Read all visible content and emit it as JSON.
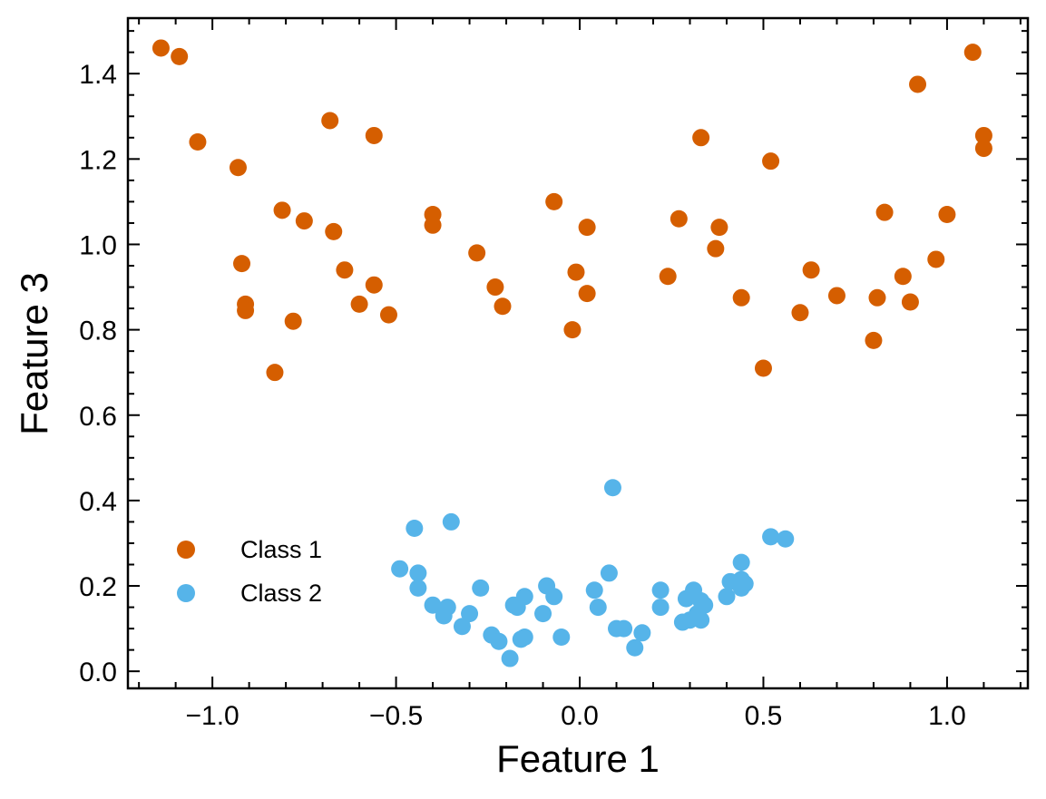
{
  "chart_data": {
    "type": "scatter",
    "title": "",
    "xlabel": "Feature 1",
    "ylabel": "Feature 3",
    "xlim": [
      -1.23,
      1.22
    ],
    "ylim": [
      -0.04,
      1.53
    ],
    "xticks": [
      -1.0,
      -0.5,
      0.0,
      0.5,
      1.0
    ],
    "xtick_labels": [
      "−1.0",
      "−0.5",
      "0.0",
      "0.5",
      "1.0"
    ],
    "yticks": [
      0.0,
      0.2,
      0.4,
      0.6,
      0.8,
      1.0,
      1.2,
      1.4
    ],
    "ytick_labels": [
      "0.0",
      "0.2",
      "0.4",
      "0.6",
      "0.8",
      "1.0",
      "1.2",
      "1.4"
    ],
    "grid": false,
    "legend_position": "lower-left",
    "series": [
      {
        "name": "Class 1",
        "color": "#d55e00",
        "points": [
          [
            -1.14,
            1.46
          ],
          [
            -1.09,
            1.44
          ],
          [
            -1.04,
            1.24
          ],
          [
            -0.93,
            1.18
          ],
          [
            -0.92,
            0.955
          ],
          [
            -0.91,
            0.86
          ],
          [
            -0.91,
            0.845
          ],
          [
            -0.83,
            0.7
          ],
          [
            -0.81,
            1.08
          ],
          [
            -0.78,
            0.82
          ],
          [
            -0.75,
            1.055
          ],
          [
            -0.68,
            1.29
          ],
          [
            -0.67,
            1.03
          ],
          [
            -0.64,
            0.94
          ],
          [
            -0.6,
            0.86
          ],
          [
            -0.56,
            1.255
          ],
          [
            -0.56,
            0.905
          ],
          [
            -0.52,
            0.835
          ],
          [
            -0.4,
            1.07
          ],
          [
            -0.4,
            1.045
          ],
          [
            -0.28,
            0.98
          ],
          [
            -0.23,
            0.9
          ],
          [
            -0.21,
            0.855
          ],
          [
            -0.07,
            1.1
          ],
          [
            -0.02,
            0.8
          ],
          [
            -0.01,
            0.935
          ],
          [
            0.02,
            1.04
          ],
          [
            0.02,
            0.885
          ],
          [
            0.24,
            0.925
          ],
          [
            0.27,
            1.06
          ],
          [
            0.33,
            1.25
          ],
          [
            0.37,
            0.99
          ],
          [
            0.38,
            1.04
          ],
          [
            0.44,
            0.875
          ],
          [
            0.5,
            0.71
          ],
          [
            0.52,
            1.195
          ],
          [
            0.6,
            0.84
          ],
          [
            0.63,
            0.94
          ],
          [
            0.7,
            0.88
          ],
          [
            0.8,
            0.775
          ],
          [
            0.81,
            0.875
          ],
          [
            0.83,
            1.075
          ],
          [
            0.88,
            0.925
          ],
          [
            0.9,
            0.865
          ],
          [
            0.92,
            1.375
          ],
          [
            0.97,
            0.965
          ],
          [
            1.0,
            1.07
          ],
          [
            1.07,
            1.45
          ],
          [
            1.1,
            1.255
          ],
          [
            1.1,
            1.225
          ]
        ]
      },
      {
        "name": "Class 2",
        "color": "#56b4e9",
        "points": [
          [
            -0.49,
            0.24
          ],
          [
            -0.45,
            0.335
          ],
          [
            -0.44,
            0.195
          ],
          [
            -0.44,
            0.23
          ],
          [
            -0.4,
            0.155
          ],
          [
            -0.37,
            0.13
          ],
          [
            -0.36,
            0.15
          ],
          [
            -0.35,
            0.35
          ],
          [
            -0.32,
            0.105
          ],
          [
            -0.3,
            0.135
          ],
          [
            -0.27,
            0.195
          ],
          [
            -0.24,
            0.085
          ],
          [
            -0.22,
            0.07
          ],
          [
            -0.19,
            0.03
          ],
          [
            -0.18,
            0.155
          ],
          [
            -0.17,
            0.15
          ],
          [
            -0.16,
            0.075
          ],
          [
            -0.15,
            0.08
          ],
          [
            -0.15,
            0.175
          ],
          [
            -0.1,
            0.135
          ],
          [
            -0.09,
            0.2
          ],
          [
            -0.07,
            0.175
          ],
          [
            -0.05,
            0.08
          ],
          [
            0.04,
            0.19
          ],
          [
            0.05,
            0.15
          ],
          [
            0.08,
            0.23
          ],
          [
            0.09,
            0.43
          ],
          [
            0.1,
            0.1
          ],
          [
            0.12,
            0.1
          ],
          [
            0.15,
            0.055
          ],
          [
            0.17,
            0.09
          ],
          [
            0.22,
            0.19
          ],
          [
            0.22,
            0.15
          ],
          [
            0.28,
            0.115
          ],
          [
            0.29,
            0.17
          ],
          [
            0.3,
            0.12
          ],
          [
            0.31,
            0.19
          ],
          [
            0.32,
            0.135
          ],
          [
            0.33,
            0.165
          ],
          [
            0.33,
            0.12
          ],
          [
            0.34,
            0.155
          ],
          [
            0.4,
            0.175
          ],
          [
            0.41,
            0.21
          ],
          [
            0.44,
            0.255
          ],
          [
            0.44,
            0.215
          ],
          [
            0.44,
            0.195
          ],
          [
            0.45,
            0.205
          ],
          [
            0.52,
            0.315
          ],
          [
            0.56,
            0.31
          ]
        ]
      }
    ]
  }
}
